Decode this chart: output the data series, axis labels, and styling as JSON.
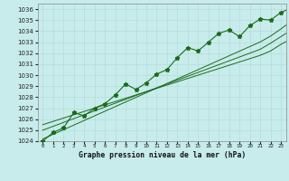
{
  "title": "Graphe pression niveau de la mer (hPa)",
  "background_color": "#c8ecec",
  "grid_color": "#b0d8d8",
  "line_color": "#1a6b1a",
  "ylim": [
    1024,
    1036.5
  ],
  "yticks": [
    1024,
    1025,
    1026,
    1027,
    1028,
    1029,
    1030,
    1031,
    1032,
    1033,
    1034,
    1035,
    1036
  ],
  "pressure_data": [
    1024.0,
    1024.8,
    1025.2,
    1026.6,
    1026.3,
    1027.0,
    1027.4,
    1028.2,
    1029.2,
    1028.7,
    1029.3,
    1030.1,
    1030.5,
    1031.6,
    1032.5,
    1032.2,
    1033.0,
    1033.8,
    1034.1,
    1033.5,
    1034.5,
    1035.1,
    1035.0,
    1035.7,
    1036.1
  ],
  "smooth_line1": [
    1025.5,
    1025.8,
    1026.1,
    1026.4,
    1026.7,
    1027.0,
    1027.3,
    1027.6,
    1027.9,
    1028.2,
    1028.5,
    1028.8,
    1029.1,
    1029.4,
    1029.7,
    1030.0,
    1030.3,
    1030.6,
    1030.9,
    1031.2,
    1031.5,
    1031.8,
    1032.2,
    1032.8,
    1033.3
  ],
  "smooth_line2": [
    1025.0,
    1025.35,
    1025.7,
    1026.05,
    1026.4,
    1026.75,
    1027.1,
    1027.45,
    1027.8,
    1028.15,
    1028.5,
    1028.85,
    1029.2,
    1029.55,
    1029.9,
    1030.25,
    1030.6,
    1030.95,
    1031.3,
    1031.65,
    1032.0,
    1032.35,
    1032.9,
    1033.5,
    1034.1
  ],
  "smooth_line3": [
    1024.2,
    1024.62,
    1025.04,
    1025.46,
    1025.88,
    1026.3,
    1026.72,
    1027.14,
    1027.56,
    1027.98,
    1028.4,
    1028.82,
    1029.24,
    1029.66,
    1030.08,
    1030.5,
    1030.92,
    1031.34,
    1031.76,
    1032.18,
    1032.6,
    1033.02,
    1033.55,
    1034.2,
    1034.9
  ],
  "figwidth": 3.2,
  "figheight": 2.0,
  "dpi": 100
}
